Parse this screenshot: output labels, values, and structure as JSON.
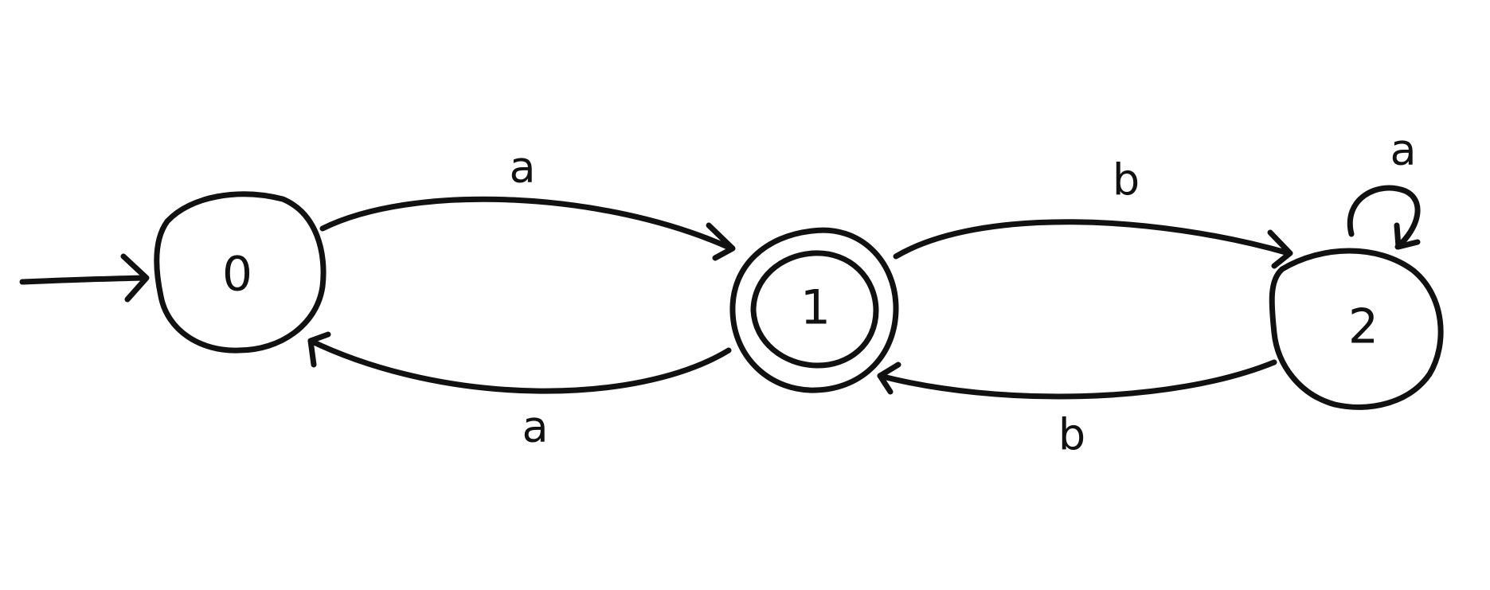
{
  "states": [
    {
      "id": "0",
      "label": "0",
      "start": true,
      "accepting": false
    },
    {
      "id": "1",
      "label": "1",
      "start": false,
      "accepting": true
    },
    {
      "id": "2",
      "label": "2",
      "start": false,
      "accepting": false
    }
  ],
  "transitions": [
    {
      "from": "0",
      "to": "1",
      "label": "a"
    },
    {
      "from": "1",
      "to": "0",
      "label": "a"
    },
    {
      "from": "1",
      "to": "2",
      "label": "b"
    },
    {
      "from": "2",
      "to": "1",
      "label": "b"
    },
    {
      "from": "2",
      "to": "2",
      "label": "a"
    }
  ],
  "colors": {
    "ink": "#111111",
    "background": "#ffffff"
  }
}
